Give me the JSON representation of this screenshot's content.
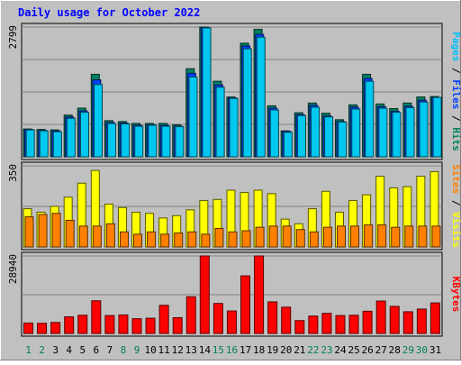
{
  "chart_data": {
    "type": "bar",
    "title": "Daily usage for October 2022",
    "days": [
      "1",
      "2",
      "3",
      "4",
      "5",
      "6",
      "7",
      "8",
      "9",
      "10",
      "11",
      "12",
      "13",
      "14",
      "15",
      "16",
      "17",
      "18",
      "19",
      "20",
      "21",
      "22",
      "23",
      "24",
      "25",
      "26",
      "27",
      "28",
      "29",
      "30",
      "31"
    ],
    "weekend_days": [
      "1",
      "2",
      "8",
      "9",
      "15",
      "16",
      "22",
      "23",
      "29",
      "30"
    ],
    "panels": [
      {
        "name": "hits-files-pages",
        "max_label": "2799",
        "ylim": [
          0,
          2799
        ],
        "axis_legend": [
          {
            "text": "Pages",
            "color": "#00c0ff"
          },
          {
            "text": " / ",
            "color": "#000000"
          },
          {
            "text": "Files",
            "color": "#0040ff"
          },
          {
            "text": " / ",
            "color": "#000000"
          },
          {
            "text": "Hits",
            "color": "#00805c"
          }
        ],
        "series": [
          {
            "name": "Hits",
            "color": "#008060",
            "values": [
              600,
              590,
              580,
              900,
              1050,
              1780,
              780,
              760,
              720,
              720,
              720,
              690,
              1900,
              2800,
              1630,
              1290,
              2450,
              2750,
              1100,
              560,
              950,
              1160,
              940,
              800,
              1120,
              1780,
              1140,
              1040,
              1160,
              1290,
              1300
            ]
          },
          {
            "name": "Files",
            "color": "#0040ff",
            "values": [
              590,
              570,
              560,
              860,
              990,
              1660,
              740,
              730,
              680,
              690,
              680,
              660,
              1800,
              2790,
              1550,
              1270,
              2390,
              2640,
              1050,
              550,
              910,
              1110,
              880,
              760,
              1070,
              1690,
              1080,
              980,
              1090,
              1220,
              1280
            ]
          },
          {
            "name": "Pages",
            "color": "#00c8f0",
            "values": [
              580,
              560,
              540,
              830,
              960,
              1560,
              720,
              710,
              660,
              680,
              660,
              650,
              1720,
              2780,
              1500,
              1260,
              2330,
              2580,
              1010,
              530,
              890,
              1070,
              860,
              750,
              1030,
              1630,
              1050,
              960,
              1060,
              1180,
              1280
            ]
          }
        ]
      },
      {
        "name": "visits-sites",
        "max_label": "350",
        "ylim": [
          0,
          350
        ],
        "axis_legend": [
          {
            "text": "Sites",
            "color": "#ff8000"
          },
          {
            "text": " / ",
            "color": "#000000"
          },
          {
            "text": "Visits",
            "color": "#ffff00"
          }
        ],
        "series": [
          {
            "name": "Visits",
            "color": "#ffff00",
            "values": [
              165,
              150,
              175,
              215,
              275,
              330,
              185,
              170,
              150,
              145,
              125,
              135,
              160,
              200,
              205,
              245,
              235,
              245,
              230,
              120,
              100,
              165,
              240,
              150,
              200,
              225,
              305,
              255,
              260,
              305,
              325
            ]
          },
          {
            "name": "Sites",
            "color": "#ff8000",
            "values": [
              130,
              140,
              145,
              115,
              90,
              90,
              100,
              65,
              55,
              65,
              55,
              60,
              65,
              55,
              80,
              65,
              70,
              85,
              90,
              90,
              75,
              65,
              85,
              90,
              90,
              95,
              95,
              85,
              90,
              90,
              90
            ]
          }
        ]
      },
      {
        "name": "kbytes",
        "max_label": "28940",
        "ylim": [
          0,
          28940
        ],
        "axis_legend": [
          {
            "text": "KBytes",
            "color": "#ff0000"
          }
        ],
        "series": [
          {
            "name": "KBytes",
            "color": "#ff0000",
            "values": [
              3900,
              3800,
              4100,
              6200,
              6800,
              12200,
              6700,
              6900,
              5500,
              5700,
              10500,
              5900,
              13700,
              29000,
              11200,
              8400,
              21500,
              29300,
              11800,
              9800,
              4800,
              6500,
              7500,
              6700,
              6800,
              8300,
              12100,
              10100,
              8100,
              9100,
              11400
            ]
          }
        ]
      }
    ]
  }
}
